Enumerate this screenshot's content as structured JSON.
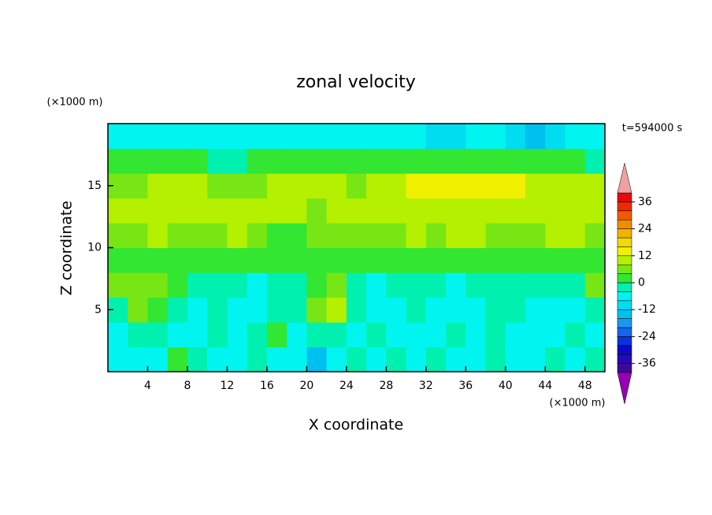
{
  "chart_data": {
    "type": "contour",
    "title": "zonal velocity",
    "x_label": "X coordinate",
    "y_label": "Z coordinate",
    "x_unit": "(×1000 m)",
    "y_unit": "(×1000 m)",
    "annotation": "t=594000 s",
    "xlim": [
      0,
      50
    ],
    "ylim": [
      0,
      20
    ],
    "xticks": [
      4,
      8,
      12,
      16,
      20,
      24,
      28,
      32,
      36,
      40,
      44,
      48
    ],
    "yticks": [
      5,
      10,
      15
    ],
    "x": [
      1,
      3,
      5,
      7,
      9,
      11,
      13,
      15,
      17,
      19,
      21,
      23,
      25,
      27,
      29,
      31,
      33,
      35,
      37,
      39,
      41,
      43,
      45,
      47,
      49
    ],
    "y": [
      1,
      3,
      5,
      7,
      9,
      11,
      13,
      15,
      17,
      19
    ],
    "values": [
      [
        -8,
        -8,
        -6,
        0,
        -2,
        -8,
        -6,
        -4,
        -6,
        -8,
        -16,
        -8,
        -4,
        -6,
        -2,
        -6,
        -4,
        -6,
        -6,
        -4,
        -6,
        -8,
        -2,
        -6,
        -4
      ],
      [
        -6,
        -4,
        -2,
        -6,
        -6,
        -2,
        -6,
        -4,
        2,
        -6,
        -4,
        -2,
        -6,
        -4,
        -8,
        -6,
        -6,
        -4,
        -6,
        -4,
        -6,
        -8,
        -6,
        -4,
        -6
      ],
      [
        -4,
        6,
        2,
        -2,
        -6,
        -4,
        -6,
        -8,
        -4,
        -4,
        6,
        8,
        -2,
        -8,
        -6,
        -2,
        -6,
        -8,
        -6,
        -4,
        -2,
        -6,
        -8,
        -6,
        -4
      ],
      [
        6,
        6,
        6,
        2,
        -2,
        -4,
        -2,
        -6,
        -4,
        -2,
        2,
        6,
        -2,
        -6,
        -4,
        -2,
        -2,
        -6,
        -4,
        -2,
        -4,
        -2,
        -4,
        -2,
        6
      ],
      [
        2,
        2,
        2,
        0,
        2,
        2,
        0,
        2,
        2,
        2,
        2,
        2,
        2,
        2,
        2,
        2,
        2,
        2,
        2,
        2,
        0,
        2,
        2,
        2,
        2
      ],
      [
        6,
        6,
        8,
        6,
        6,
        6,
        8,
        6,
        2,
        2,
        6,
        6,
        6,
        6,
        6,
        8,
        6,
        8,
        8,
        6,
        6,
        6,
        8,
        8,
        6
      ],
      [
        8,
        8,
        8,
        10,
        10,
        8,
        8,
        8,
        8,
        8,
        6,
        8,
        8,
        8,
        8,
        10,
        10,
        10,
        10,
        10,
        10,
        10,
        10,
        10,
        10
      ],
      [
        6,
        6,
        8,
        8,
        8,
        6,
        6,
        6,
        8,
        8,
        8,
        8,
        6,
        8,
        10,
        12,
        14,
        14,
        14,
        14,
        12,
        10,
        10,
        10,
        10
      ],
      [
        2,
        2,
        2,
        2,
        0,
        -2,
        -2,
        0,
        2,
        2,
        2,
        2,
        0,
        0,
        2,
        2,
        2,
        2,
        2,
        2,
        2,
        2,
        0,
        0,
        -2
      ],
      [
        -8,
        -8,
        -6,
        -6,
        -8,
        -8,
        -6,
        -6,
        -8,
        -8,
        -8,
        -8,
        -6,
        -6,
        -8,
        -8,
        -10,
        -10,
        -8,
        -8,
        -10,
        -14,
        -10,
        -8,
        -6
      ]
    ],
    "levels": [
      -40,
      -36,
      -32,
      -28,
      -24,
      -20,
      -16,
      -12,
      -8,
      -4,
      0,
      4,
      8,
      12,
      16,
      20,
      24,
      28,
      32,
      36,
      40
    ],
    "colors": [
      "#9600b4",
      "#3c0a96",
      "#280ab4",
      "#0a0ac8",
      "#0a32dc",
      "#1464f0",
      "#1e96f0",
      "#00c0f0",
      "#00dcf0",
      "#00f5f0",
      "#00f0b0",
      "#32e632",
      "#78e614",
      "#b4f000",
      "#f0f000",
      "#f0dc00",
      "#f0b400",
      "#f08c00",
      "#f05a00",
      "#f02800",
      "#e60a0a",
      "#f0a0a0"
    ],
    "colorbar_ticks": [
      -36,
      -24,
      -12,
      0,
      12,
      24,
      36
    ]
  }
}
